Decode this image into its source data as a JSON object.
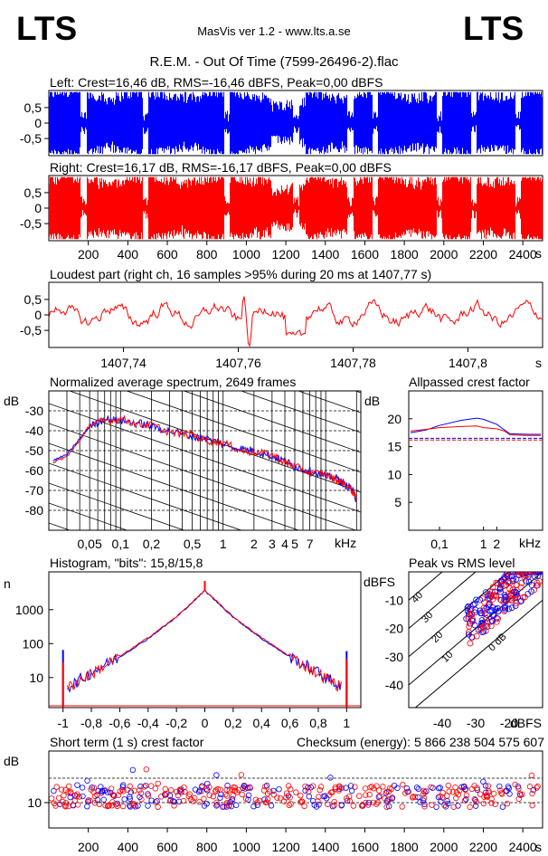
{
  "header": {
    "logo_left": "LTS",
    "logo_right": "LTS",
    "app_title": "MasVis ver 1.2 - www.lts.a.se",
    "file_title": "R.E.M. - Out Of Time (7599-26496-2).flac"
  },
  "colors": {
    "left": "#0000ff",
    "right": "#ff0000",
    "axis": "#000000"
  },
  "chart_data": [
    {
      "id": "waveform_left",
      "type": "area",
      "title": "Left: Crest=16,46 dB, RMS=-16,46 dBFS, Peak=0,00 dBFS",
      "ylabel": "",
      "y_ticks": [
        "0,5",
        "0",
        "-0,5"
      ],
      "ylim": [
        -1,
        1
      ],
      "xlim": [
        0,
        2500
      ],
      "series": [
        {
          "color": "#0000ff"
        }
      ]
    },
    {
      "id": "waveform_right",
      "type": "area",
      "title": "Right: Crest=16,17 dB, RMS=-16,17 dBFS, Peak=0,00 dBFS",
      "y_ticks": [
        "0,5",
        "0",
        "-0,5"
      ],
      "x_ticks": [
        "200",
        "400",
        "600",
        "800",
        "1000",
        "1200",
        "1400",
        "1600",
        "1800",
        "2000",
        "2200",
        "2400"
      ],
      "x_unit": "s",
      "ylim": [
        -1,
        1
      ],
      "xlim": [
        0,
        2500
      ],
      "series": [
        {
          "color": "#ff0000"
        }
      ]
    },
    {
      "id": "loudest_part",
      "type": "line",
      "title": "Loudest part (right ch, 16 samples >95% during 20 ms at 1407,77 s)",
      "y_ticks": [
        "0,5",
        "0",
        "-0,5"
      ],
      "x_ticks": [
        "1407,74",
        "1407,76",
        "1407,78",
        "1407,8"
      ],
      "x_unit": "s",
      "xlim": [
        1407.727,
        1407.813
      ],
      "ylim": [
        -1,
        1
      ],
      "series": [
        {
          "color": "#ff0000"
        }
      ]
    },
    {
      "id": "spectrum",
      "type": "line",
      "title": "Normalized average spectrum, 2649 frames",
      "ylabel": "dB",
      "y_ticks": [
        "-30",
        "-40",
        "-50",
        "-60",
        "-70",
        "-80"
      ],
      "x_ticks": [
        "0,05",
        "0,1",
        "0,2",
        "0,5",
        "1",
        "2",
        "3",
        "4",
        "5",
        "7"
      ],
      "x_unit": "kHz",
      "ylim": [
        -90,
        -20
      ],
      "log_x": true,
      "series": [
        {
          "color": "#0000ff",
          "x": [
            0.022,
            0.03,
            0.04,
            0.05,
            0.07,
            0.1,
            0.15,
            0.2,
            0.3,
            0.5,
            0.7,
            1,
            1.5,
            2,
            3,
            4,
            5,
            7,
            10,
            13,
            15,
            18,
            20
          ],
          "values": [
            -55,
            -52,
            -44,
            -38,
            -34,
            -35,
            -36,
            -38,
            -40,
            -43,
            -44,
            -47,
            -49,
            -50,
            -53,
            -55,
            -58,
            -60,
            -63,
            -64,
            -67,
            -69,
            -75
          ]
        },
        {
          "color": "#ff0000",
          "x": [
            0.022,
            0.03,
            0.04,
            0.05,
            0.07,
            0.1,
            0.15,
            0.2,
            0.3,
            0.5,
            0.7,
            1,
            1.5,
            2,
            3,
            4,
            5,
            7,
            10,
            13,
            15,
            18,
            20
          ],
          "values": [
            -56,
            -53,
            -45,
            -37,
            -35,
            -34,
            -37,
            -37,
            -41,
            -42,
            -45,
            -46,
            -50,
            -51,
            -52,
            -56,
            -58,
            -61,
            -62,
            -65,
            -66,
            -70,
            -74
          ]
        }
      ]
    },
    {
      "id": "allpassed_crest",
      "type": "line",
      "title": "Allpassed crest factor",
      "ylabel": "dB",
      "y_ticks": [
        "20",
        "15",
        "10",
        "5"
      ],
      "x_ticks": [
        "0,1",
        "1",
        "2"
      ],
      "x_unit": "kHz",
      "ylim": [
        0,
        25
      ],
      "log_x": true,
      "series": [
        {
          "color": "#0000ff",
          "x": [
            0.022,
            0.05,
            0.1,
            0.3,
            0.7,
            1,
            2,
            3,
            4,
            10,
            20
          ],
          "values": [
            17.5,
            18,
            18.8,
            19.7,
            20.1,
            19.9,
            19,
            18,
            17.3,
            17.2,
            17.2
          ]
        },
        {
          "color": "#ff0000",
          "x": [
            0.022,
            0.05,
            0.1,
            0.3,
            0.7,
            1,
            2,
            3,
            4,
            10,
            20
          ],
          "values": [
            17.8,
            18.1,
            18.4,
            18.6,
            18.7,
            18.4,
            18.2,
            17.8,
            17.1,
            17.0,
            17.0
          ]
        }
      ],
      "reference_lines": [
        {
          "color": "#0000ff",
          "value": 16.5
        },
        {
          "color": "#ff0000",
          "value": 16.2
        }
      ]
    },
    {
      "id": "histogram",
      "type": "line",
      "title": "Histogram, \"bits\": 15,8/15,8",
      "ylabel": "n",
      "y_ticks": [
        "1000",
        "100",
        "10"
      ],
      "x_ticks": [
        "-1",
        "-0,8",
        "-0,6",
        "-0,4",
        "-0,2",
        "0",
        "0,2",
        "0,4",
        "0,6",
        "0,8",
        "1"
      ],
      "xlim": [
        -1.1,
        1.1
      ],
      "log_y": true,
      "ylim": [
        1.3,
        13000
      ],
      "series": [
        {
          "color": "#0000ff",
          "x": [
            -1,
            -0.97,
            -0.8,
            -0.6,
            -0.4,
            -0.2,
            0,
            0.2,
            0.4,
            0.6,
            0.8,
            0.97,
            1
          ],
          "values": [
            65,
            5,
            14,
            40,
            140,
            600,
            3600,
            600,
            140,
            40,
            14,
            5,
            60
          ]
        },
        {
          "color": "#ff0000",
          "x": [
            -1,
            -0.97,
            -0.8,
            -0.6,
            -0.4,
            -0.2,
            0,
            0.2,
            0.4,
            0.6,
            0.8,
            0.97,
            1
          ],
          "values": [
            28,
            5,
            13,
            42,
            150,
            620,
            3700,
            620,
            150,
            42,
            13,
            5,
            35
          ]
        }
      ]
    },
    {
      "id": "peak_vs_rms",
      "type": "scatter",
      "title": "Peak vs RMS level",
      "ylabel": "dBFS",
      "y_ticks": [
        "-10",
        "-20",
        "-30",
        "-40"
      ],
      "x_ticks": [
        "-40",
        "-30",
        "-20"
      ],
      "x_unit": "dBFS",
      "xlim": [
        -50,
        -10
      ],
      "ylim": [
        -48,
        0
      ],
      "diagonal_labels": [
        "40",
        "30",
        "20",
        "10",
        "0 dB"
      ],
      "series": [
        {
          "color": "#0000ff"
        },
        {
          "color": "#ff0000"
        }
      ]
    },
    {
      "id": "short_term_crest",
      "type": "scatter",
      "title": "Short term (1 s) crest factor",
      "annotation": "Checksum (energy):  5 866 238 504 575 607",
      "ylabel": "dB",
      "y_ticks": [
        "10"
      ],
      "x_ticks": [
        "200",
        "400",
        "600",
        "800",
        "1000",
        "1200",
        "1400",
        "1600",
        "1800",
        "2000",
        "2200",
        "2400"
      ],
      "x_unit": "s",
      "xlim": [
        0,
        2500
      ],
      "series": [
        {
          "color": "#0000ff"
        },
        {
          "color": "#ff0000"
        }
      ]
    }
  ]
}
